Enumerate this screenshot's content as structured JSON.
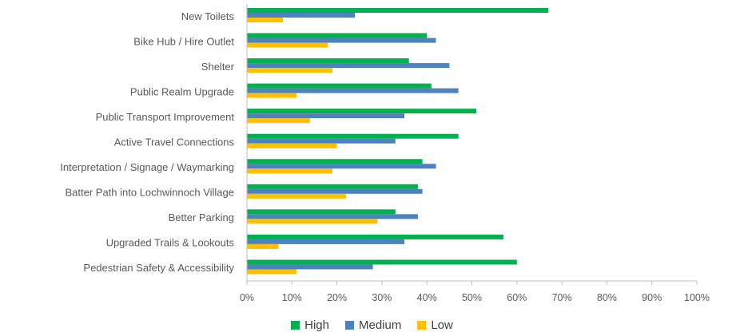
{
  "chart_data": {
    "type": "bar",
    "orientation": "horizontal",
    "categories": [
      "New Toilets",
      "Bike Hub / Hire Outlet",
      "Shelter",
      "Public Realm Upgrade",
      "Public Transport Improvement",
      "Active Travel Connections",
      "Interpretation / Signage  / Waymarking",
      "Batter Path into Lochwinnoch Village",
      "Better Parking",
      "Upgraded Trails & Lookouts",
      "Pedestrian Safety & Accessibility"
    ],
    "series": [
      {
        "name": "High",
        "color": "#00B050",
        "values": [
          67,
          40,
          36,
          41,
          51,
          47,
          39,
          38,
          33,
          57,
          60
        ]
      },
      {
        "name": "Medium",
        "color": "#4F81BD",
        "values": [
          24,
          42,
          45,
          47,
          35,
          33,
          42,
          39,
          38,
          35,
          28
        ]
      },
      {
        "name": "Low",
        "color": "#FFC000",
        "values": [
          8,
          18,
          19,
          11,
          14,
          20,
          19,
          22,
          29,
          7,
          11
        ]
      }
    ],
    "xlim": [
      0,
      100
    ],
    "x_ticks": [
      "0%",
      "10%",
      "20%",
      "30%",
      "40%",
      "50%",
      "60%",
      "70%",
      "80%",
      "90%",
      "100%"
    ],
    "title": "",
    "xlabel": "",
    "ylabel": "",
    "grid": false,
    "legend_position": "bottom"
  }
}
